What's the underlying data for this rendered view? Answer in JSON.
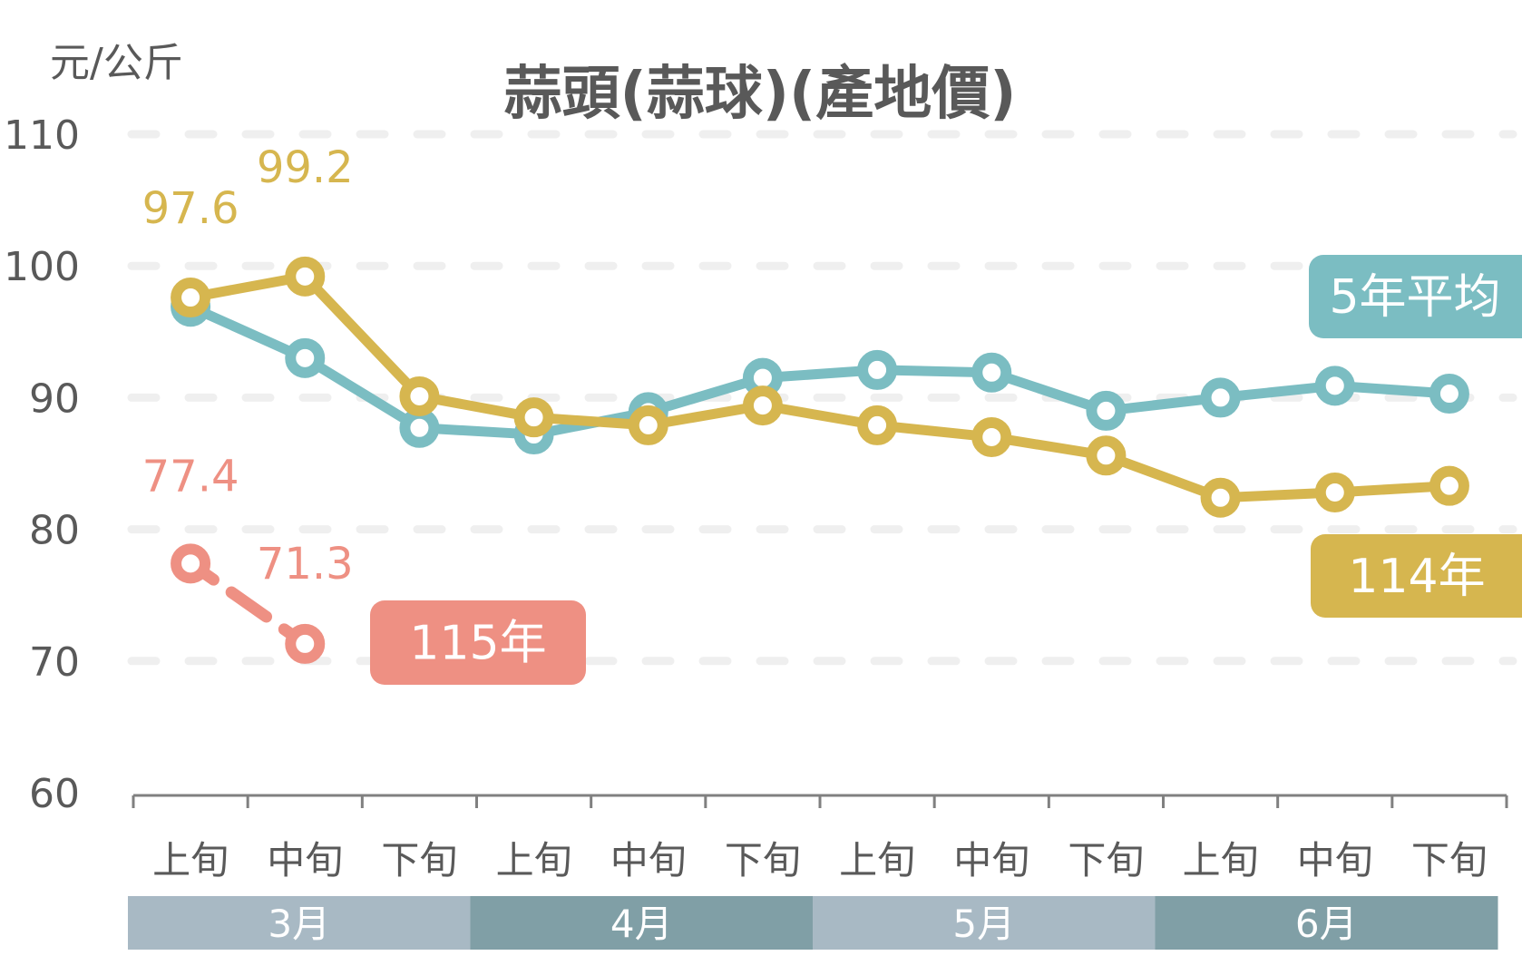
{
  "chart_data": {
    "type": "line",
    "title": "蒜頭(蒜球)(產地價)",
    "ylabel": "元/公斤",
    "xlabel": "",
    "ylim": [
      60,
      110
    ],
    "yticks": [
      60,
      70,
      80,
      90,
      100,
      110
    ],
    "grid": true,
    "categories": [
      "上旬",
      "中旬",
      "下旬",
      "上旬",
      "中旬",
      "下旬",
      "上旬",
      "中旬",
      "下旬",
      "上旬",
      "中旬",
      "下旬"
    ],
    "month_groups": [
      "3月",
      "4月",
      "5月",
      "6月"
    ],
    "series": [
      {
        "name": "5年平均",
        "color": "#7bbdc2",
        "style": "solid",
        "values": [
          96.9,
          93.0,
          87.7,
          87.2,
          88.9,
          91.5,
          92.1,
          91.9,
          89.0,
          90.0,
          90.9,
          90.3
        ]
      },
      {
        "name": "114年",
        "color": "#d6b64f",
        "style": "solid",
        "values": [
          97.6,
          99.2,
          90.1,
          88.5,
          87.9,
          89.4,
          87.9,
          87.0,
          85.6,
          82.4,
          82.8,
          83.3
        ]
      },
      {
        "name": "115年",
        "color": "#ee9083",
        "style": "dashed",
        "values": [
          77.4,
          71.3,
          null,
          null,
          null,
          null,
          null,
          null,
          null,
          null,
          null,
          null
        ]
      }
    ],
    "data_labels": [
      {
        "series": "114年",
        "index": 0,
        "text": "97.6"
      },
      {
        "series": "114年",
        "index": 1,
        "text": "99.2"
      },
      {
        "series": "115年",
        "index": 0,
        "text": "77.4"
      },
      {
        "series": "115年",
        "index": 1,
        "text": "71.3"
      }
    ],
    "legend": [
      {
        "label": "5年平均",
        "color": "#7bbdc2",
        "placement": "right"
      },
      {
        "label": "114年",
        "color": "#d6b64f",
        "placement": "right"
      },
      {
        "label": "115年",
        "color": "#ee9083",
        "placement": "inline"
      }
    ],
    "month_colors": [
      "#a8b9c4",
      "#809fa6"
    ]
  }
}
